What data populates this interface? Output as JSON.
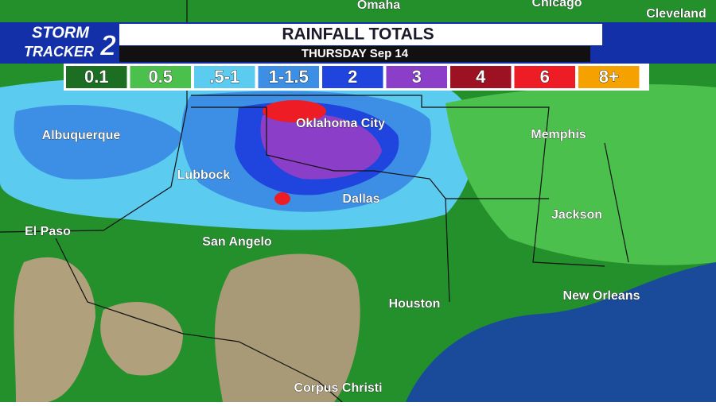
{
  "header": {
    "logo_top": "STORM",
    "logo_bottom": "TRACKER",
    "logo_number": "2",
    "title": "RAINFALL TOTALS",
    "subtitle": "THURSDAY Sep 14"
  },
  "legend": [
    {
      "label": "0.1",
      "color": "#1b6e22"
    },
    {
      "label": "0.5",
      "color": "#4cc04c"
    },
    {
      "label": ".5-1",
      "color": "#5bcbef"
    },
    {
      "label": "1-1.5",
      "color": "#3d8fe6"
    },
    {
      "label": "2",
      "color": "#1f45de"
    },
    {
      "label": "3",
      "color": "#8b3fc9"
    },
    {
      "label": "4",
      "color": "#9c1222"
    },
    {
      "label": "6",
      "color": "#ee1c25"
    },
    {
      "label": "8+",
      "color": "#f5a100"
    }
  ],
  "cities": [
    "Omaha",
    "Chicago",
    "Cleveland",
    "Oklahoma City",
    "Albuquerque",
    "Memphis",
    "Lubbock",
    "Dallas",
    "Jackson",
    "El Paso",
    "San Angelo",
    "Houston",
    "New Orleans",
    "Corpus Christi"
  ]
}
